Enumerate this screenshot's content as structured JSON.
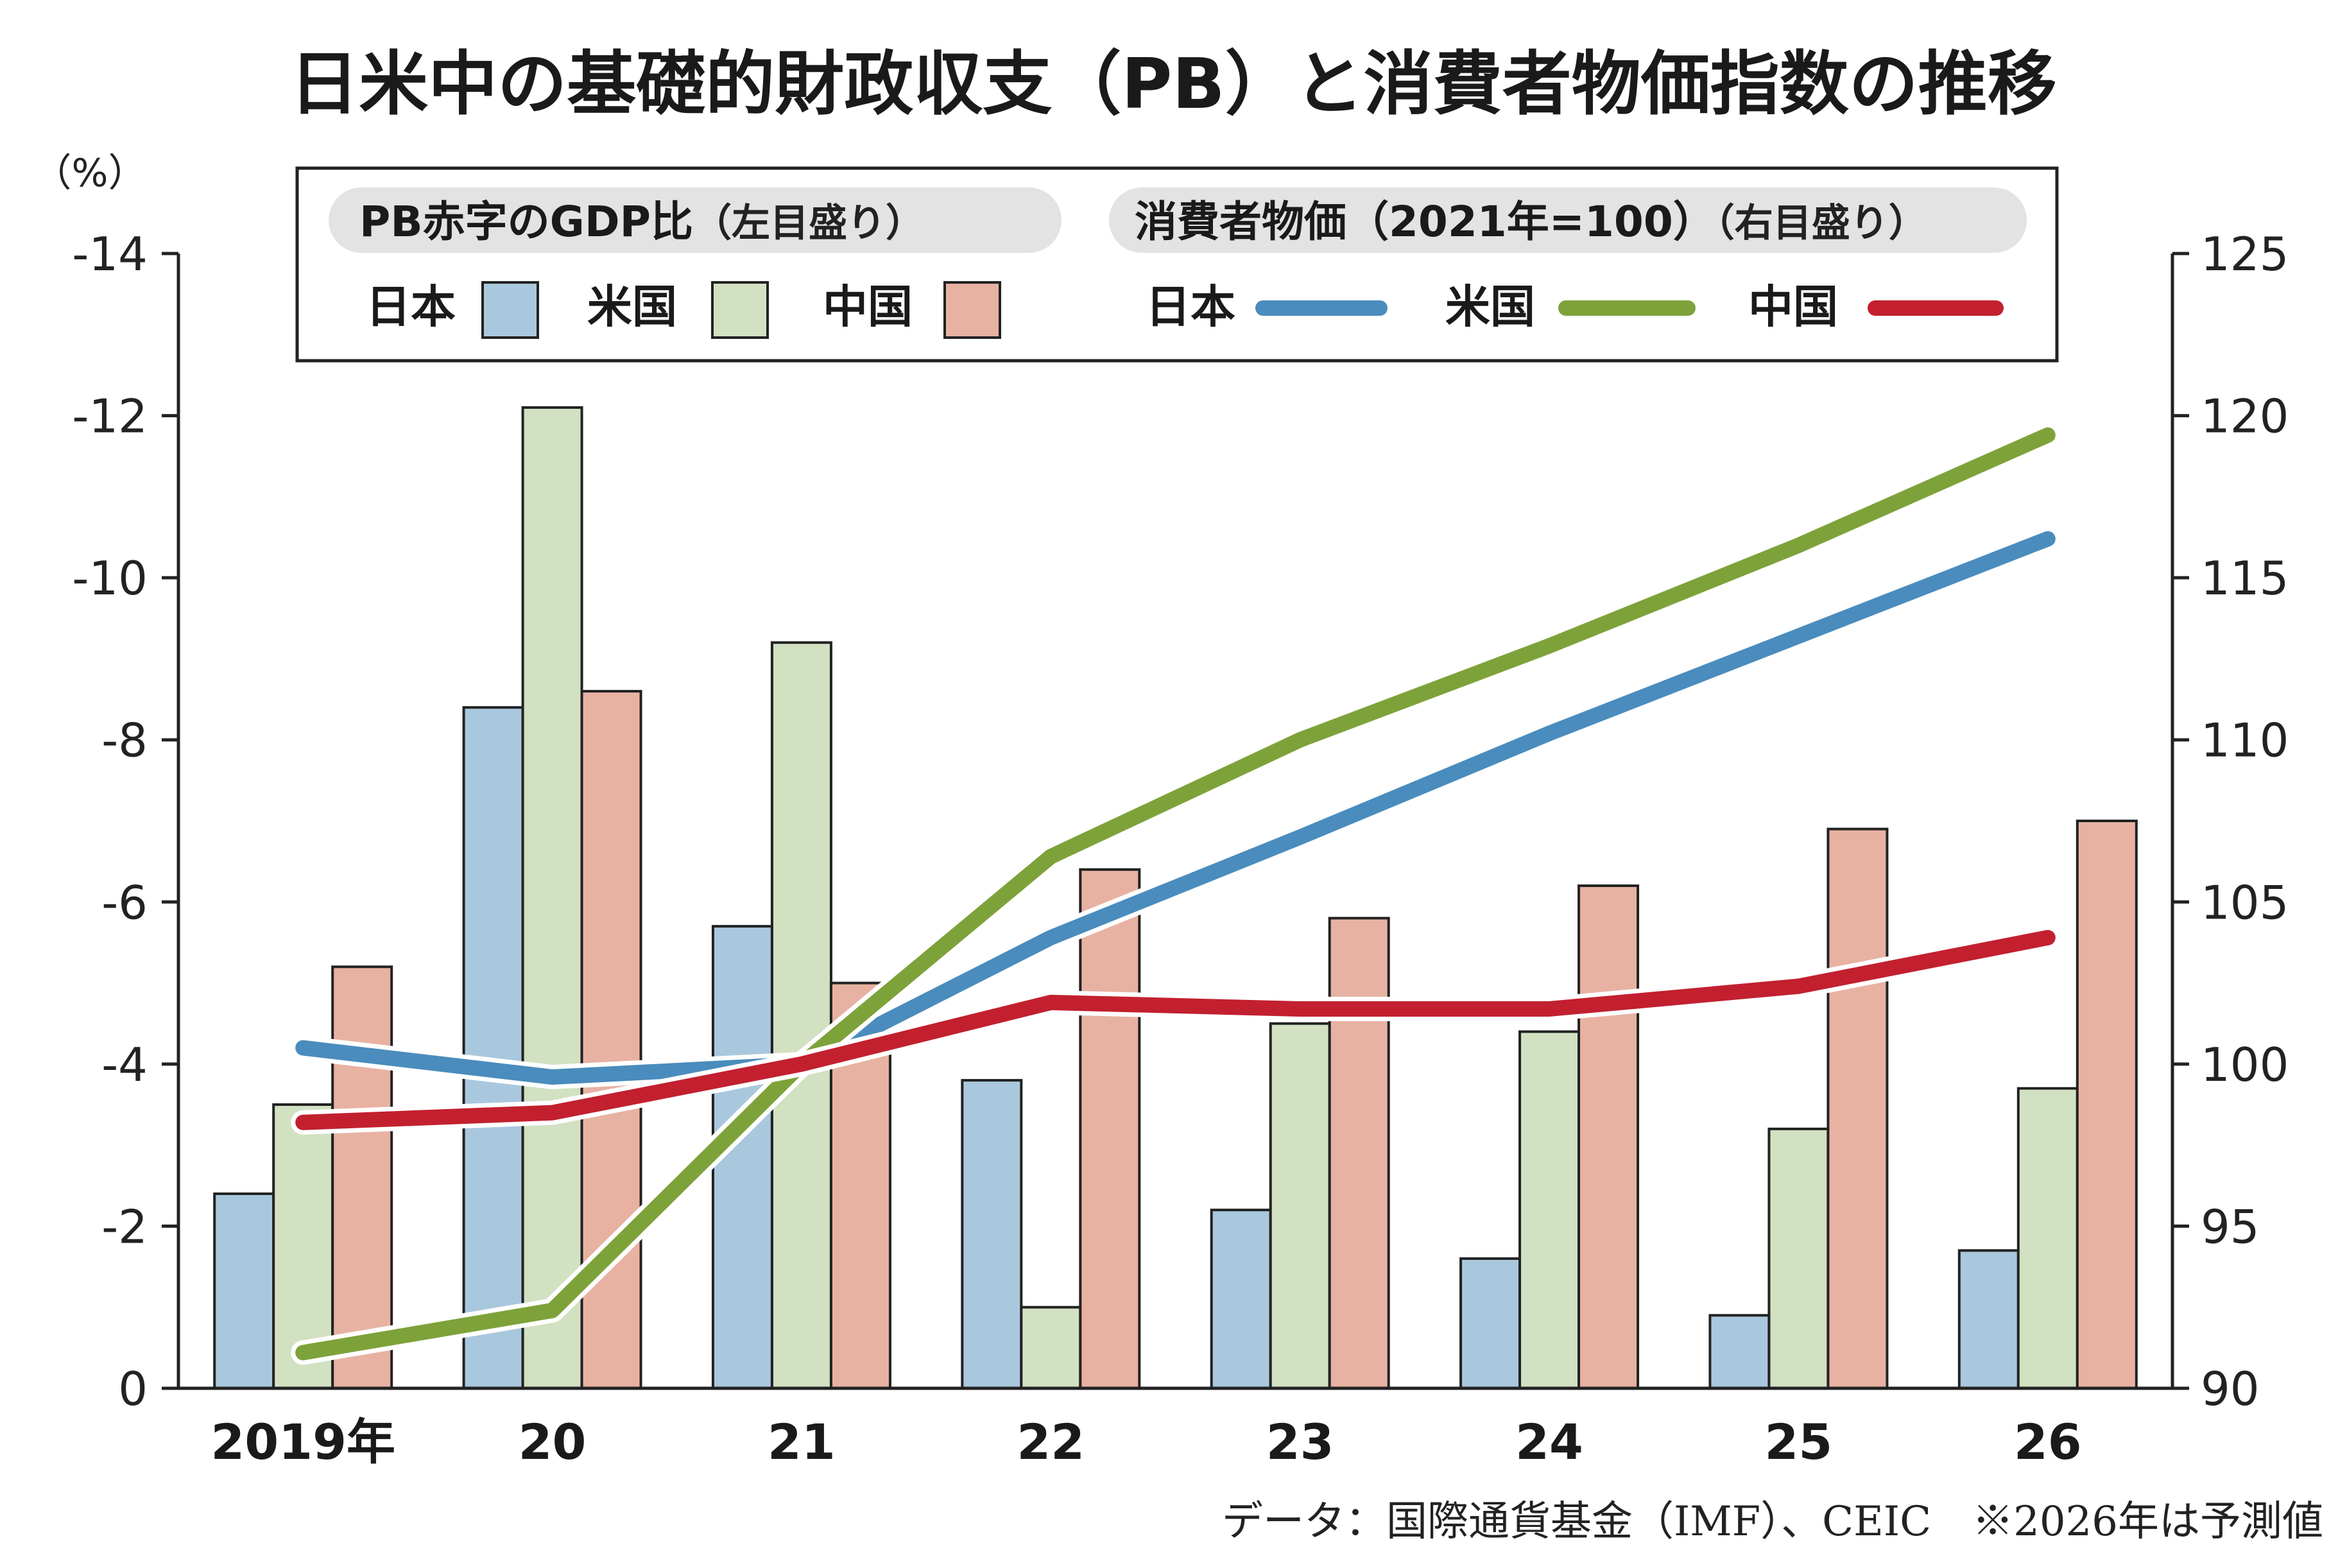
{
  "title": "日米中の基礎的財政収支（PB）と消費者物価指数の推移",
  "source": "データ：国際通貨基金（IMF）、CEIC　※2026年は予測値",
  "colors": {
    "japan_bar": "#a9c8de",
    "us_bar": "#d2e1c2",
    "china_bar": "#e8b2a2",
    "japan_line": "#4a8cbd",
    "us_line": "#7ea23a",
    "china_line": "#c2202f",
    "legend_pill": "#e3e3e3"
  },
  "legend": {
    "bars_title": "PB赤字のGDP比",
    "bars_note": "（左目盛り）",
    "lines_title": "消費者物価（2021年=100）",
    "lines_note": "（右目盛り）",
    "japan": "日本",
    "us": "米国",
    "china": "中国"
  },
  "chart_data": {
    "type": "bar+line",
    "title": "日米中の基礎的財政収支（PB）と消費者物価指数の推移",
    "categories": [
      "2019年",
      "20",
      "21",
      "22",
      "23",
      "24",
      "25",
      "26"
    ],
    "left_axis": {
      "unit": "（%）",
      "ylim": [
        0,
        -14
      ],
      "ticks": [
        "0",
        "-2",
        "-4",
        "-6",
        "-8",
        "-10",
        "-12",
        "-14"
      ]
    },
    "right_axis": {
      "ylim": [
        90,
        125
      ],
      "ticks": [
        "90",
        "95",
        "100",
        "105",
        "110",
        "115",
        "120",
        "125"
      ]
    },
    "bar_series": [
      {
        "name": "日本",
        "axis": "left",
        "values": [
          -2.4,
          -8.4,
          -5.7,
          -3.8,
          -2.2,
          -1.6,
          -0.9,
          -1.7
        ]
      },
      {
        "name": "米国",
        "axis": "left",
        "values": [
          -3.5,
          -12.1,
          -9.2,
          -1.0,
          -4.5,
          -4.4,
          -3.2,
          -3.7
        ]
      },
      {
        "name": "中国",
        "axis": "left",
        "values": [
          -5.2,
          -8.6,
          -5.0,
          -6.4,
          -5.8,
          -6.2,
          -6.9,
          -7.0
        ]
      }
    ],
    "line_series": [
      {
        "name": "日本",
        "axis": "right",
        "values": [
          100.5,
          99.6,
          100.0,
          103.9,
          107.0,
          110.2,
          113.2,
          116.2
        ]
      },
      {
        "name": "米国",
        "axis": "right",
        "values": [
          91.1,
          92.4,
          100.0,
          106.4,
          110.0,
          112.9,
          116.0,
          119.4
        ]
      },
      {
        "name": "中国",
        "axis": "right",
        "values": [
          98.2,
          98.5,
          100.0,
          101.9,
          101.7,
          101.7,
          102.4,
          103.9
        ]
      }
    ],
    "grid": false,
    "legend_position": "top"
  }
}
